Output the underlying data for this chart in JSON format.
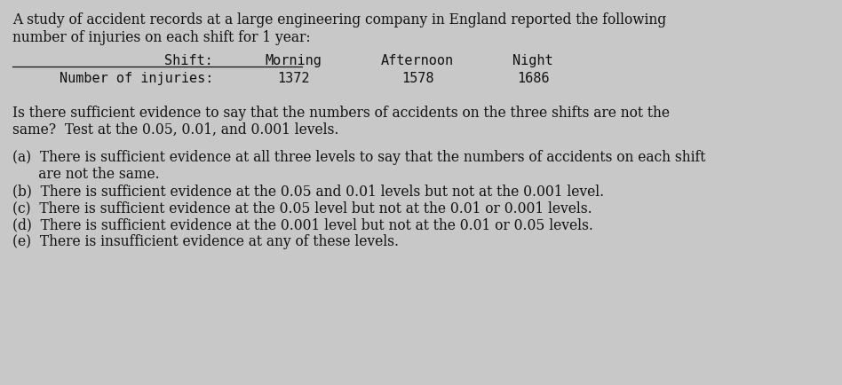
{
  "bg_color": "#c8c8c8",
  "text_color": "#111111",
  "intro_line1": "A study of accident records at a large engineering company in England reported the following",
  "intro_line2": "number of injuries on each shift for 1 year:",
  "shift_label": "Shift:",
  "col_headers": [
    "Morning",
    "Afternoon",
    "Night"
  ],
  "row_label": "Number of injuries:",
  "row_values": [
    "1372",
    "1578",
    "1686"
  ],
  "question_line1": "Is there sufficient evidence to say that the numbers of accidents on the three shifts are not the",
  "question_line2": "same?  Test at the 0.05, 0.01, and 0.001 levels.",
  "option_a_line1": "(a)  There is sufficient evidence at all three levels to say that the numbers of accidents on each shift",
  "option_a_line2": "      are not the same.",
  "option_b": "(b)  There is sufficient evidence at the 0.05 and 0.01 levels but not at the 0.001 level.",
  "option_c": "(c)  There is sufficient evidence at the 0.05 level but not at the 0.01 or 0.001 levels.",
  "option_d": "(d)  There is sufficient evidence at the 0.001 level but not at the 0.01 or 0.05 levels.",
  "option_e": "(e)  There is insufficient evidence at any of these levels.",
  "fs_body": 11.2,
  "fs_table": 11.0
}
